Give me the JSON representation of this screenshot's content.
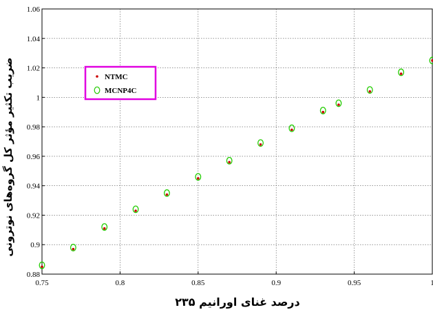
{
  "chart_data": {
    "type": "scatter",
    "xlabel": "درصد غنای اورانیم ۲۳۵",
    "ylabel": "ضریب تکثیر مؤثر کل گروه‌های نوترونی",
    "xlim": [
      0.75,
      1.0
    ],
    "ylim": [
      0.88,
      1.06
    ],
    "x_ticks": [
      0.75,
      0.8,
      0.85,
      0.9,
      0.95,
      1
    ],
    "x_tick_labels": [
      "0.75",
      "0.8",
      "0.85",
      "0.9",
      "0.95",
      "1"
    ],
    "y_ticks": [
      0.88,
      0.9,
      0.92,
      0.94,
      0.96,
      0.98,
      1.0,
      1.02,
      1.04,
      1.06
    ],
    "y_tick_labels": [
      "0.88",
      "0.9",
      "0.92",
      "0.94",
      "0.96",
      "0.98",
      "1",
      "1.02",
      "1.04",
      "1.06"
    ],
    "grid": true,
    "legend_position": "upper-left",
    "series": [
      {
        "name": "NTMC",
        "marker": "dot",
        "color": "#cc0000",
        "x": [
          0.75,
          0.77,
          0.79,
          0.81,
          0.83,
          0.85,
          0.87,
          0.89,
          0.91,
          0.93,
          0.94,
          0.96,
          0.98,
          1.0
        ],
        "y": [
          0.885,
          0.897,
          0.911,
          0.923,
          0.934,
          0.945,
          0.956,
          0.968,
          0.978,
          0.99,
          0.995,
          1.004,
          1.016,
          1.025
        ]
      },
      {
        "name": "MCNP4C",
        "marker": "circle",
        "color": "#22cc00",
        "x": [
          0.75,
          0.77,
          0.79,
          0.81,
          0.83,
          0.85,
          0.87,
          0.89,
          0.91,
          0.93,
          0.94,
          0.96,
          0.98,
          1.0
        ],
        "y": [
          0.886,
          0.898,
          0.912,
          0.924,
          0.935,
          0.946,
          0.957,
          0.969,
          0.979,
          0.991,
          0.996,
          1.005,
          1.017,
          1.025
        ]
      }
    ],
    "legend_box_color": "#e000e0"
  }
}
